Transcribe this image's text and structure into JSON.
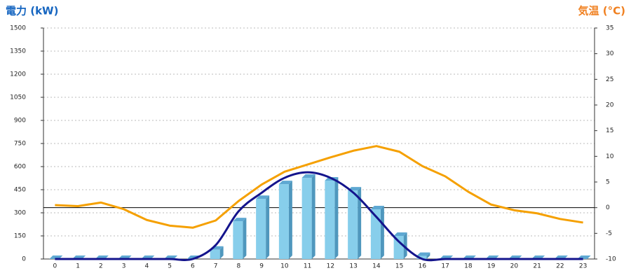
{
  "chart_data": {
    "type": "bar",
    "y_label": "電力 (kW)",
    "y2_label": "気温 (°C)",
    "categories": [
      "0",
      "1",
      "2",
      "3",
      "4",
      "5",
      "6",
      "7",
      "8",
      "9",
      "10",
      "11",
      "12",
      "13",
      "14",
      "15",
      "16",
      "17",
      "18",
      "19",
      "20",
      "21",
      "22",
      "23"
    ],
    "series": [
      {
        "type": "bar",
        "color": "#87ceeb",
        "values": [
          0,
          0,
          0,
          0,
          0,
          0,
          0,
          60,
          245,
          390,
          486,
          527,
          509,
          445,
          323,
          150,
          20,
          0,
          0,
          0,
          0,
          0,
          0,
          0
        ]
      },
      {
        "type": "line",
        "smooth": true,
        "color": "#14148c",
        "values": [
          0,
          0,
          0,
          0,
          0,
          0,
          0,
          90,
          310,
          430,
          527,
          563,
          527,
          430,
          273,
          110,
          0,
          0,
          0,
          0,
          0,
          0,
          0,
          0
        ]
      },
      {
        "type": "line",
        "axis": "y2",
        "color": "#f5a000",
        "values": [
          0.5,
          0.3,
          1,
          -0.3,
          -2.4,
          -3.5,
          -3.9,
          -2.5,
          1.3,
          4.5,
          7,
          8.4,
          9.8,
          11.1,
          12,
          10.9,
          8.1,
          6.1,
          3.1,
          0.6,
          -0.5,
          -1.1,
          -2.2,
          -2.9
        ]
      }
    ],
    "ylim": [
      0,
      1500
    ],
    "yticks": [
      0,
      150,
      300,
      450,
      600,
      750,
      900,
      1050,
      1200,
      1350,
      1500
    ],
    "y2lim": [
      -10,
      35
    ],
    "y2ticks": [
      -10,
      -5,
      0,
      5,
      10,
      15,
      20,
      25,
      30,
      35
    ],
    "grid": true
  }
}
